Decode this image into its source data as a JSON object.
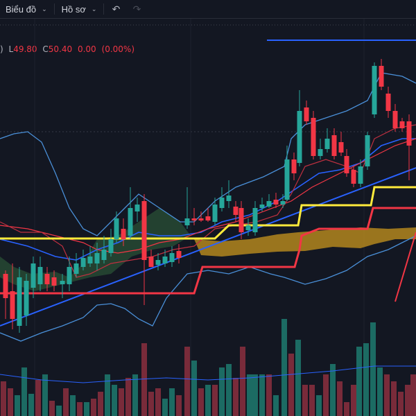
{
  "toolbar": {
    "chart_menu_label": "Biểu đồ",
    "profile_menu_label": "Hồ sơ",
    "chevron_icon": "chevron-down-icon",
    "undo_icon": "undo-icon",
    "redo_icon": "redo-icon"
  },
  "legend": {
    "open_suffix": ")",
    "low_label": "L",
    "low_value": "49.80",
    "close_label": "C",
    "close_value": "50.40",
    "change": "0.00",
    "change_pct": "(0.00%)"
  },
  "colors": {
    "background": "#131722",
    "up": "#26a69a",
    "down": "#f23645",
    "bollinger": "#2962ff",
    "yellow_line": "#ffeb3b",
    "red_line": "#f23645",
    "cloud": "#c8961e",
    "cloud_green": "#2e5e3a"
  }
}
